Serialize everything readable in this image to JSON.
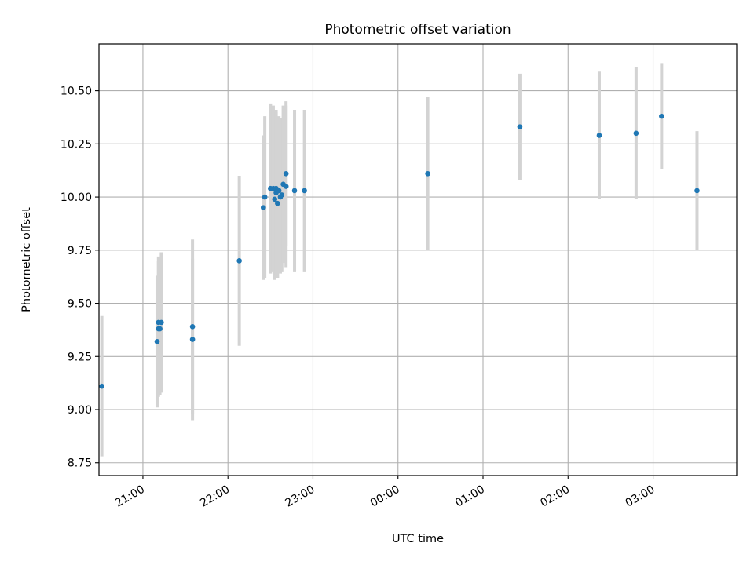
{
  "chart_data": {
    "type": "scatter",
    "title": "Photometric offset variation",
    "xlabel": "UTC time",
    "ylabel": "Photometric offset",
    "x_axis_kind": "time",
    "x_range": [
      "20:29",
      "03:59"
    ],
    "ylim": [
      8.69,
      10.72
    ],
    "grid": true,
    "legend": "none",
    "x_ticks": [
      "21:00",
      "22:00",
      "23:00",
      "00:00",
      "01:00",
      "02:00",
      "03:00"
    ],
    "y_ticks": [
      "8.75",
      "9.00",
      "9.25",
      "9.50",
      "9.75",
      "10.00",
      "10.25",
      "10.50"
    ],
    "colors": {
      "points": "#1f77b4",
      "errorbars": "#d3d3d3",
      "grid": "#b0b0b0"
    },
    "points": [
      {
        "x": "20:31",
        "y": 9.11,
        "err": 0.33
      },
      {
        "x": "21:10",
        "y": 9.32,
        "err": 0.31
      },
      {
        "x": "21:11",
        "y": 9.38,
        "err": 0.32
      },
      {
        "x": "21:11",
        "y": 9.41,
        "err": 0.31
      },
      {
        "x": "21:12",
        "y": 9.38,
        "err": 0.31
      },
      {
        "x": "21:13",
        "y": 9.41,
        "err": 0.33
      },
      {
        "x": "21:35",
        "y": 9.33,
        "err": 0.38
      },
      {
        "x": "21:35",
        "y": 9.39,
        "err": 0.41
      },
      {
        "x": "22:08",
        "y": 9.7,
        "err": 0.4
      },
      {
        "x": "22:25",
        "y": 9.95,
        "err": 0.34
      },
      {
        "x": "22:26",
        "y": 10.0,
        "err": 0.38
      },
      {
        "x": "22:30",
        "y": 10.04,
        "err": 0.4
      },
      {
        "x": "22:32",
        "y": 10.04,
        "err": 0.39
      },
      {
        "x": "22:33",
        "y": 9.99,
        "err": 0.38
      },
      {
        "x": "22:34",
        "y": 10.04,
        "err": 0.36
      },
      {
        "x": "22:34",
        "y": 10.02,
        "err": 0.39
      },
      {
        "x": "22:35",
        "y": 9.97,
        "err": 0.35
      },
      {
        "x": "22:36",
        "y": 10.03,
        "err": 0.35
      },
      {
        "x": "22:37",
        "y": 10.0,
        "err": 0.36
      },
      {
        "x": "22:38",
        "y": 10.01,
        "err": 0.36
      },
      {
        "x": "22:39",
        "y": 10.06,
        "err": 0.37
      },
      {
        "x": "22:41",
        "y": 10.05,
        "err": 0.38
      },
      {
        "x": "22:41",
        "y": 10.11,
        "err": 0.34
      },
      {
        "x": "22:47",
        "y": 10.03,
        "err": 0.38
      },
      {
        "x": "22:54",
        "y": 10.03,
        "err": 0.38
      },
      {
        "x": "00:21",
        "y": 10.11,
        "err": 0.36
      },
      {
        "x": "01:26",
        "y": 10.33,
        "err": 0.25
      },
      {
        "x": "02:22",
        "y": 10.29,
        "err": 0.3
      },
      {
        "x": "02:48",
        "y": 10.3,
        "err": 0.31
      },
      {
        "x": "03:06",
        "y": 10.38,
        "err": 0.25
      },
      {
        "x": "03:31",
        "y": 10.03,
        "err": 0.28
      }
    ]
  }
}
